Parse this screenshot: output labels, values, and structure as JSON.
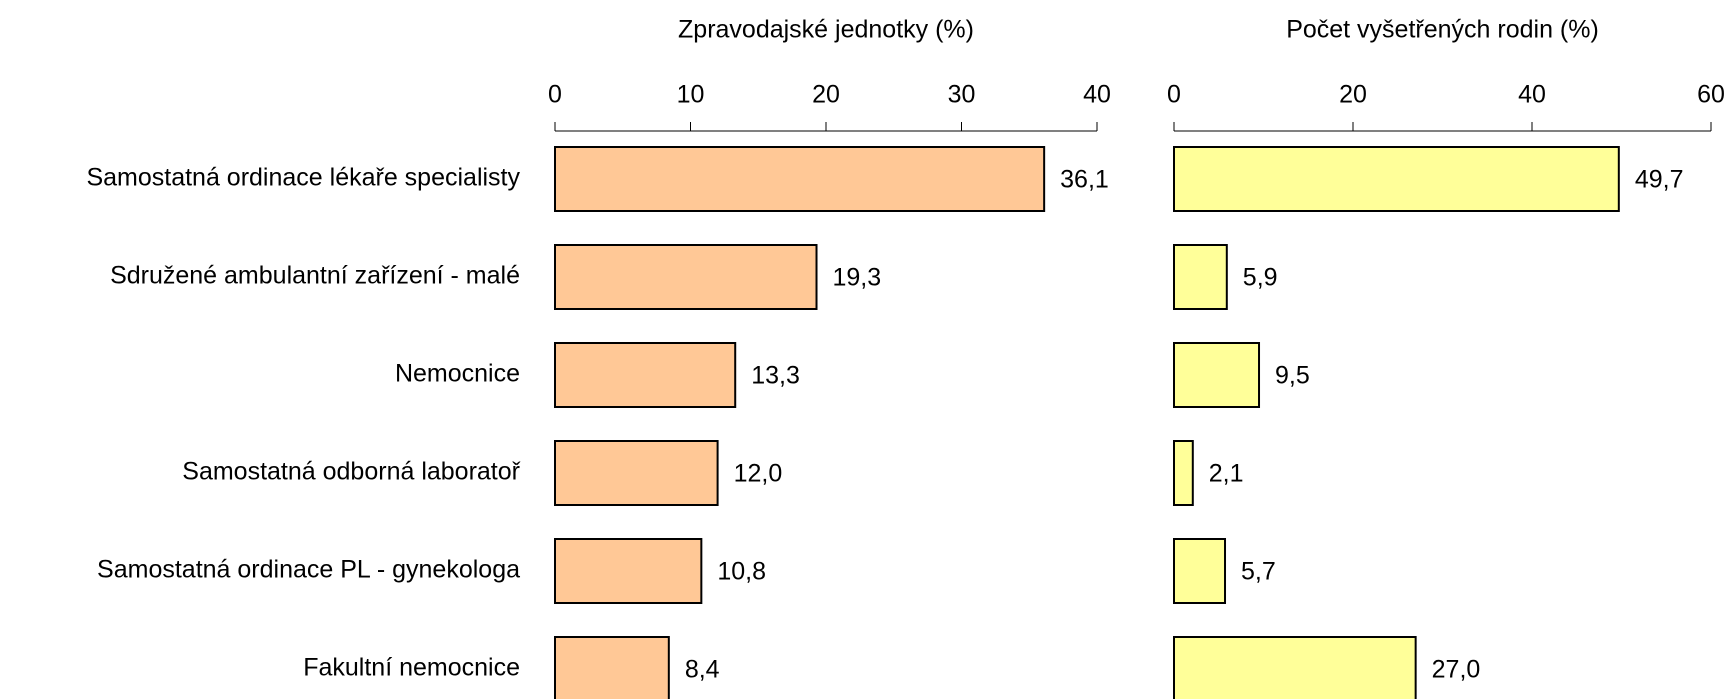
{
  "chart_data": [
    {
      "type": "bar",
      "orientation": "horizontal",
      "title": "Zpravodajské jednotky (%)",
      "categories": [
        "Samostatná ordinace lékaře specialisty",
        "Sdružené ambulantní zařízení - malé",
        "Nemocnice",
        "Samostatná odborná laboratoř",
        "Samostatná ordinace PL - gynekologa",
        "Fakultní nemocnice"
      ],
      "values": [
        36.1,
        19.3,
        13.3,
        12.0,
        10.8,
        8.4
      ],
      "value_labels": [
        "36,1",
        "19,3",
        "13,3",
        "12,0",
        "10,8",
        "8,4"
      ],
      "color": "#ffc896",
      "xlim": [
        0,
        40
      ],
      "xticks": [
        0,
        10,
        20,
        30,
        40
      ]
    },
    {
      "type": "bar",
      "orientation": "horizontal",
      "title": "Počet vyšetřených rodin (%)",
      "values": [
        49.7,
        5.9,
        9.5,
        2.1,
        5.7,
        27.0
      ],
      "value_labels": [
        "49,7",
        "5,9",
        "9,5",
        "2,1",
        "5,7",
        "27,0"
      ],
      "color": "#ffff99",
      "xlim": [
        0,
        60
      ],
      "xticks": [
        0,
        20,
        40,
        60
      ]
    }
  ]
}
